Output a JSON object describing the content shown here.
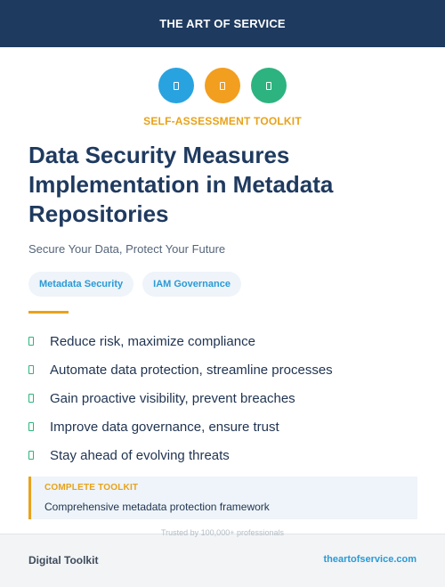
{
  "header": {
    "title": "THE ART OF SERVICE"
  },
  "icons": [
    {
      "name": "document-icon",
      "color": "#29a3e0"
    },
    {
      "name": "document-icon",
      "color": "#f29e1f"
    },
    {
      "name": "document-icon",
      "color": "#2db37f"
    }
  ],
  "kicker": "SELF-ASSESSMENT TOOLKIT",
  "title": "Data Security Measures Implementation in Metadata Repositories",
  "subtitle": "Secure Your Data, Protect Your Future",
  "tags": [
    "Metadata Security",
    "IAM Governance"
  ],
  "features": [
    "Reduce risk, maximize compliance",
    "Automate data protection, streamline processes",
    "Gain proactive visibility, prevent breaches",
    "Improve data governance, ensure trust",
    "Stay ahead of evolving threats"
  ],
  "callout": {
    "label": "COMPLETE TOOLKIT",
    "text": "Comprehensive metadata protection framework"
  },
  "footer": {
    "trusted": "Trusted by 100,000+ professionals",
    "left": "Digital Toolkit",
    "right": "theartofservice.com"
  }
}
